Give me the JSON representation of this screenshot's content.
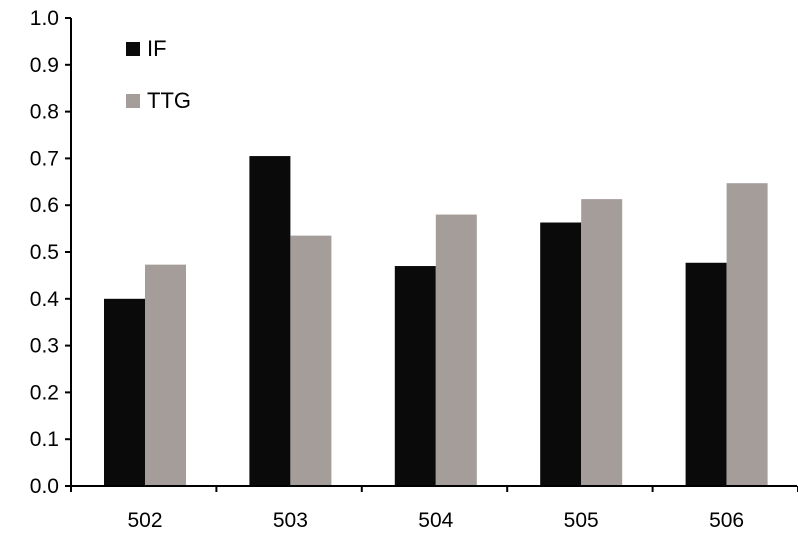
{
  "chart_data": {
    "type": "bar",
    "categories": [
      "502",
      "503",
      "504",
      "505",
      "506"
    ],
    "series": [
      {
        "name": "IF",
        "color": "#0a0a0a",
        "values": [
          0.4,
          0.705,
          0.47,
          0.563,
          0.477
        ]
      },
      {
        "name": "TTG",
        "color": "#a59d9a",
        "values": [
          0.473,
          0.535,
          0.58,
          0.613,
          0.647
        ]
      }
    ],
    "title": "",
    "xlabel": "",
    "ylabel": "",
    "ylim": [
      0,
      1.0
    ],
    "yticks": [
      "0.0",
      "0.1",
      "0.2",
      "0.3",
      "0.4",
      "0.5",
      "0.6",
      "0.7",
      "0.8",
      "0.9",
      "1.0"
    ],
    "grid": false,
    "legend_position": "top-left"
  }
}
